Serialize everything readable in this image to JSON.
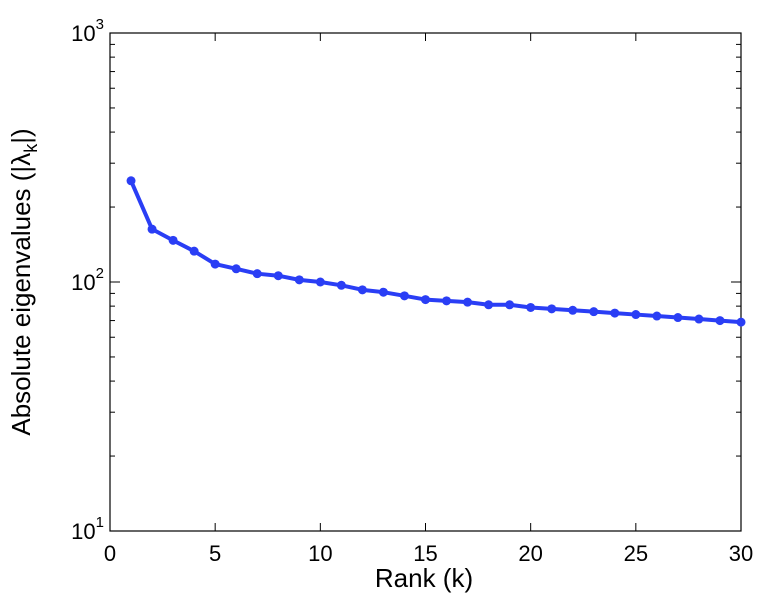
{
  "chart_data": {
    "type": "line",
    "title": "",
    "xlabel": "Rank (k)",
    "ylabel_prefix": "Absolute eigenvalues (|λ",
    "ylabel_subscript": "k",
    "ylabel_suffix": "|)",
    "xlim": [
      0,
      30
    ],
    "ylim": [
      10,
      1000
    ],
    "yscale": "log",
    "x_ticks": [
      0,
      5,
      10,
      15,
      20,
      25,
      30
    ],
    "x_tick_labels": [
      "0",
      "5",
      "10",
      "15",
      "20",
      "25",
      "30"
    ],
    "y_ticks": [
      {
        "value": 10,
        "base": "10",
        "exponent": "1"
      },
      {
        "value": 100,
        "base": "10",
        "exponent": "2"
      },
      {
        "value": 1000,
        "base": "10",
        "exponent": "3"
      }
    ],
    "grid": false,
    "series": [
      {
        "color": "#2a3ef5",
        "marker": "circle",
        "x": [
          1,
          2,
          3,
          4,
          5,
          6,
          7,
          8,
          9,
          10,
          11,
          12,
          13,
          14,
          15,
          16,
          17,
          18,
          19,
          20,
          21,
          22,
          23,
          24,
          25,
          26,
          27,
          28,
          29,
          30
        ],
        "y": [
          255,
          163,
          147,
          133,
          118,
          113,
          108,
          106,
          102,
          100,
          97,
          93,
          91,
          88,
          85,
          84,
          83,
          81,
          81,
          79,
          78,
          77,
          76,
          75,
          74,
          73,
          72,
          71,
          70,
          69
        ]
      }
    ]
  }
}
